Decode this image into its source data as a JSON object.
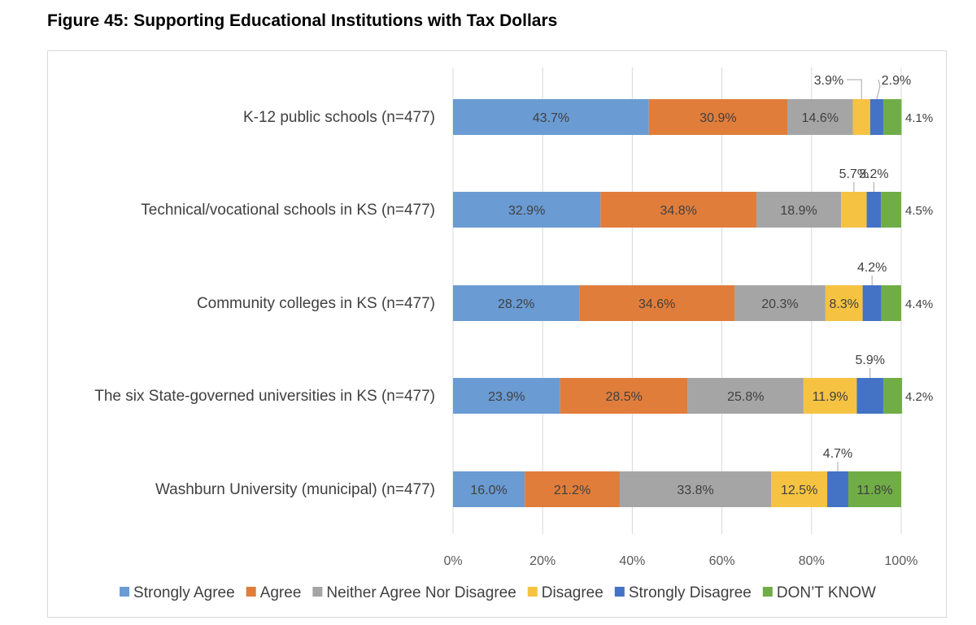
{
  "figure": {
    "title": "Figure 45: Supporting Educational Institutions with Tax Dollars"
  },
  "chart_data": {
    "type": "bar",
    "orientation": "horizontal",
    "stacked": true,
    "categories": [
      "K-12 public schools (n=477)",
      "Technical/vocational schools in KS (n=477)",
      "Community colleges in KS (n=477)",
      "The six State-governed universities in KS (n=477)",
      "Washburn University (municipal) (n=477)"
    ],
    "series": [
      {
        "name": "Strongly Agree",
        "color": "#6a9bd3",
        "values": [
          43.7,
          32.9,
          28.2,
          23.9,
          16.0
        ]
      },
      {
        "name": "Agree",
        "color": "#e07d3b",
        "values": [
          30.9,
          34.8,
          34.6,
          28.5,
          21.2
        ]
      },
      {
        "name": "Neither Agree Nor Disagree",
        "color": "#a5a5a5",
        "values": [
          14.6,
          18.9,
          20.3,
          25.8,
          33.8
        ]
      },
      {
        "name": "Disagree",
        "color": "#f5c242",
        "values": [
          3.9,
          5.7,
          8.3,
          11.9,
          12.5
        ]
      },
      {
        "name": "Strongly Disagree",
        "color": "#4472c4",
        "values": [
          2.9,
          3.2,
          4.2,
          5.9,
          4.7
        ]
      },
      {
        "name": "DON’T KNOW",
        "color": "#70ad47",
        "values": [
          4.1,
          4.5,
          4.4,
          4.2,
          11.8
        ]
      }
    ],
    "xlim": [
      0,
      100
    ],
    "x_ticks": [
      "0%",
      "20%",
      "40%",
      "60%",
      "80%",
      "100%"
    ],
    "grid": true,
    "legend_position": "bottom",
    "value_format": "percent_1dp"
  }
}
